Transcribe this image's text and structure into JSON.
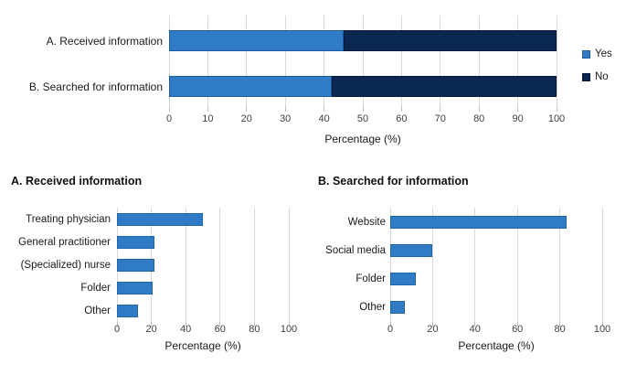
{
  "colors": {
    "yes_blue": "#2F7BC5",
    "yes_border": "#1E5A9E",
    "no_navy": "#0A2751",
    "no_border": "#06173A",
    "bar_fill": "#2F7BC5",
    "bar_border": "#2264AE",
    "gridline": "#D9D9D9",
    "axis_text": "#404040"
  },
  "chart_data": [
    {
      "id": "top-stacked",
      "type": "bar",
      "stacked": true,
      "orientation": "horizontal",
      "categories": [
        "A. Received information",
        "B. Searched for information"
      ],
      "series": [
        {
          "name": "Yes",
          "values": [
            45,
            42
          ],
          "color": "#2F7BC5",
          "border": "#1E5A9E"
        },
        {
          "name": "No",
          "values": [
            55,
            58
          ],
          "color": "#0A2751",
          "border": "#06173A"
        }
      ],
      "xlabel": "Percentage (%)",
      "xlim": [
        0,
        100
      ],
      "xticks": [
        0,
        10,
        20,
        30,
        40,
        50,
        60,
        70,
        80,
        90,
        100
      ],
      "legend_position": "right",
      "grid": true
    },
    {
      "id": "received",
      "type": "bar",
      "orientation": "horizontal",
      "title": "A. Received information",
      "categories": [
        "Treating physician",
        "General practitioner",
        "(Specialized) nurse",
        "Folder",
        "Other"
      ],
      "values": [
        50,
        22,
        22,
        21,
        12
      ],
      "xlabel": "Percentage (%)",
      "xlim": [
        0,
        100
      ],
      "xticks": [
        0,
        20,
        40,
        60,
        80,
        100
      ],
      "grid": true
    },
    {
      "id": "searched",
      "type": "bar",
      "orientation": "horizontal",
      "title": "B. Searched for information",
      "categories": [
        "Website",
        "Social media",
        "Folder",
        "Other"
      ],
      "values": [
        83,
        20,
        12,
        7
      ],
      "xlabel": "Percentage (%)",
      "xlim": [
        0,
        100
      ],
      "xticks": [
        0,
        20,
        40,
        60,
        80,
        100
      ],
      "grid": true
    }
  ]
}
